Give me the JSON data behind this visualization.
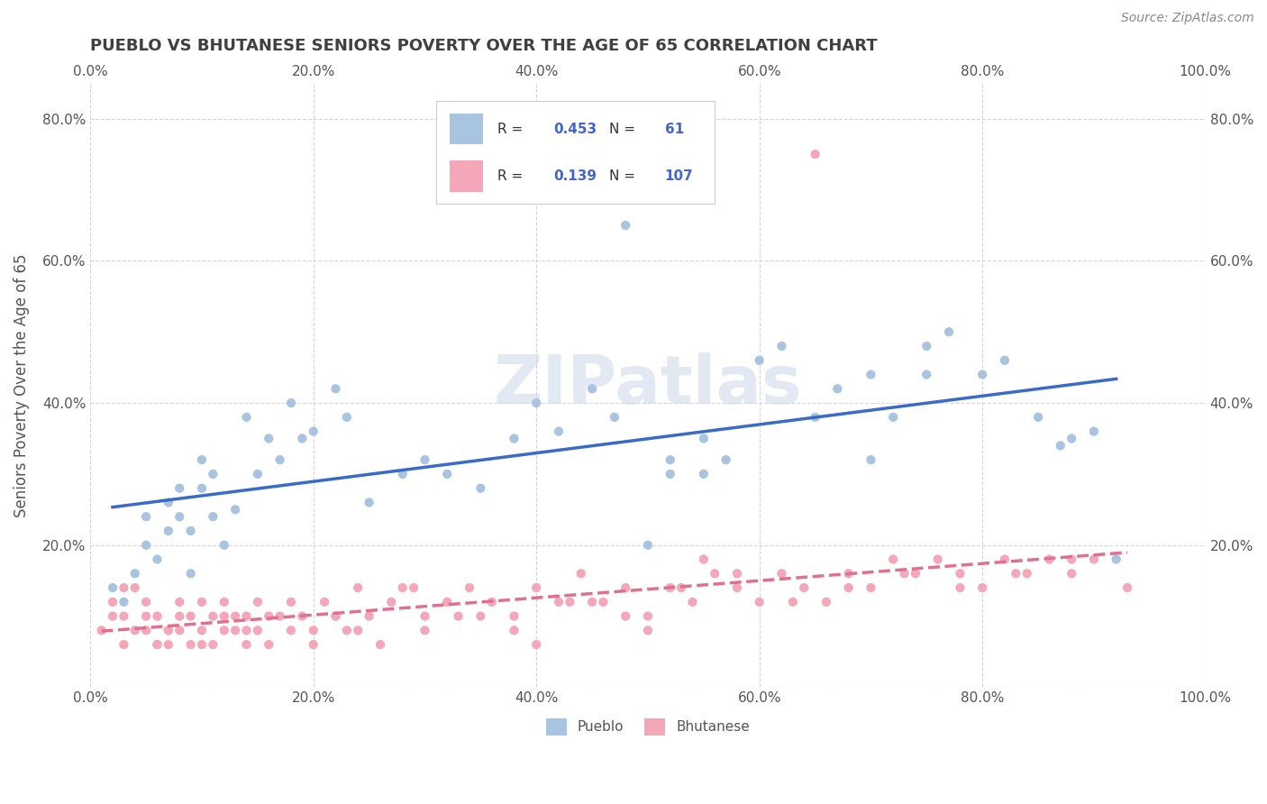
{
  "title": "PUEBLO VS BHUTANESE SENIORS POVERTY OVER THE AGE OF 65 CORRELATION CHART",
  "source": "Source: ZipAtlas.com",
  "ylabel": "Seniors Poverty Over the Age of 65",
  "xlim": [
    0,
    1.0
  ],
  "ylim": [
    0,
    0.85
  ],
  "xticks": [
    0.0,
    0.2,
    0.4,
    0.6,
    0.8,
    1.0
  ],
  "yticks": [
    0.0,
    0.2,
    0.4,
    0.6,
    0.8
  ],
  "xticklabels": [
    "0.0%",
    "20.0%",
    "40.0%",
    "60.0%",
    "80.0%",
    "100.0%"
  ],
  "yticklabels": [
    "",
    "20.0%",
    "40.0%",
    "60.0%",
    "80.0%"
  ],
  "pueblo_color": "#a8c4e0",
  "bhutanese_color": "#f4a7b9",
  "pueblo_line_color": "#3a6bc9",
  "bhutanese_line_color": "#e07090",
  "R_pueblo": 0.453,
  "N_pueblo": 61,
  "R_bhutanese": 0.139,
  "N_bhutanese": 107,
  "watermark": "ZIPatlas",
  "pueblo_scatter_x": [
    0.02,
    0.03,
    0.04,
    0.05,
    0.05,
    0.06,
    0.07,
    0.07,
    0.08,
    0.08,
    0.09,
    0.09,
    0.1,
    0.1,
    0.11,
    0.11,
    0.12,
    0.13,
    0.14,
    0.15,
    0.16,
    0.17,
    0.18,
    0.19,
    0.2,
    0.22,
    0.23,
    0.25,
    0.28,
    0.3,
    0.32,
    0.35,
    0.38,
    0.4,
    0.42,
    0.45,
    0.47,
    0.5,
    0.52,
    0.55,
    0.57,
    0.6,
    0.62,
    0.65,
    0.67,
    0.7,
    0.72,
    0.75,
    0.77,
    0.8,
    0.82,
    0.85,
    0.87,
    0.9,
    0.48,
    0.52,
    0.55,
    0.7,
    0.75,
    0.88,
    0.92
  ],
  "pueblo_scatter_y": [
    0.14,
    0.12,
    0.16,
    0.2,
    0.24,
    0.18,
    0.22,
    0.26,
    0.24,
    0.28,
    0.16,
    0.22,
    0.28,
    0.32,
    0.24,
    0.3,
    0.2,
    0.25,
    0.38,
    0.3,
    0.35,
    0.32,
    0.4,
    0.35,
    0.36,
    0.42,
    0.38,
    0.26,
    0.3,
    0.32,
    0.3,
    0.28,
    0.35,
    0.4,
    0.36,
    0.42,
    0.38,
    0.2,
    0.3,
    0.35,
    0.32,
    0.46,
    0.48,
    0.38,
    0.42,
    0.44,
    0.38,
    0.44,
    0.5,
    0.44,
    0.46,
    0.38,
    0.34,
    0.36,
    0.65,
    0.32,
    0.3,
    0.32,
    0.48,
    0.35,
    0.18
  ],
  "bhutanese_scatter_x": [
    0.01,
    0.02,
    0.02,
    0.03,
    0.03,
    0.04,
    0.04,
    0.05,
    0.05,
    0.06,
    0.06,
    0.07,
    0.07,
    0.08,
    0.08,
    0.09,
    0.09,
    0.1,
    0.1,
    0.11,
    0.11,
    0.12,
    0.12,
    0.13,
    0.13,
    0.14,
    0.14,
    0.15,
    0.15,
    0.16,
    0.17,
    0.18,
    0.19,
    0.2,
    0.21,
    0.22,
    0.23,
    0.24,
    0.25,
    0.27,
    0.29,
    0.3,
    0.32,
    0.34,
    0.36,
    0.38,
    0.4,
    0.42,
    0.44,
    0.46,
    0.48,
    0.5,
    0.52,
    0.54,
    0.56,
    0.58,
    0.6,
    0.62,
    0.64,
    0.66,
    0.68,
    0.7,
    0.72,
    0.74,
    0.76,
    0.78,
    0.8,
    0.82,
    0.84,
    0.86,
    0.88,
    0.9,
    0.3,
    0.35,
    0.4,
    0.45,
    0.5,
    0.28,
    0.33,
    0.38,
    0.43,
    0.48,
    0.53,
    0.58,
    0.63,
    0.68,
    0.73,
    0.78,
    0.83,
    0.88,
    0.93,
    0.06,
    0.08,
    0.1,
    0.12,
    0.14,
    0.16,
    0.18,
    0.2,
    0.22,
    0.24,
    0.26,
    0.03,
    0.05,
    0.07,
    0.55,
    0.65
  ],
  "bhutanese_scatter_y": [
    0.08,
    0.1,
    0.12,
    0.06,
    0.1,
    0.08,
    0.14,
    0.08,
    0.12,
    0.06,
    0.1,
    0.06,
    0.08,
    0.1,
    0.12,
    0.06,
    0.1,
    0.08,
    0.12,
    0.06,
    0.1,
    0.08,
    0.12,
    0.08,
    0.1,
    0.06,
    0.1,
    0.08,
    0.12,
    0.06,
    0.1,
    0.12,
    0.1,
    0.08,
    0.12,
    0.1,
    0.08,
    0.14,
    0.1,
    0.12,
    0.14,
    0.1,
    0.12,
    0.14,
    0.12,
    0.1,
    0.14,
    0.12,
    0.16,
    0.12,
    0.14,
    0.1,
    0.14,
    0.12,
    0.16,
    0.14,
    0.12,
    0.16,
    0.14,
    0.12,
    0.16,
    0.14,
    0.18,
    0.16,
    0.18,
    0.16,
    0.14,
    0.18,
    0.16,
    0.18,
    0.16,
    0.18,
    0.08,
    0.1,
    0.06,
    0.12,
    0.08,
    0.14,
    0.1,
    0.08,
    0.12,
    0.1,
    0.14,
    0.16,
    0.12,
    0.14,
    0.16,
    0.14,
    0.16,
    0.18,
    0.14,
    0.06,
    0.08,
    0.06,
    0.1,
    0.08,
    0.1,
    0.08,
    0.06,
    0.1,
    0.08,
    0.06,
    0.14,
    0.1,
    0.08,
    0.18,
    0.75
  ],
  "background_color": "#ffffff",
  "grid_color": "#cccccc",
  "title_color": "#404040",
  "legend_color": "#4466cc"
}
